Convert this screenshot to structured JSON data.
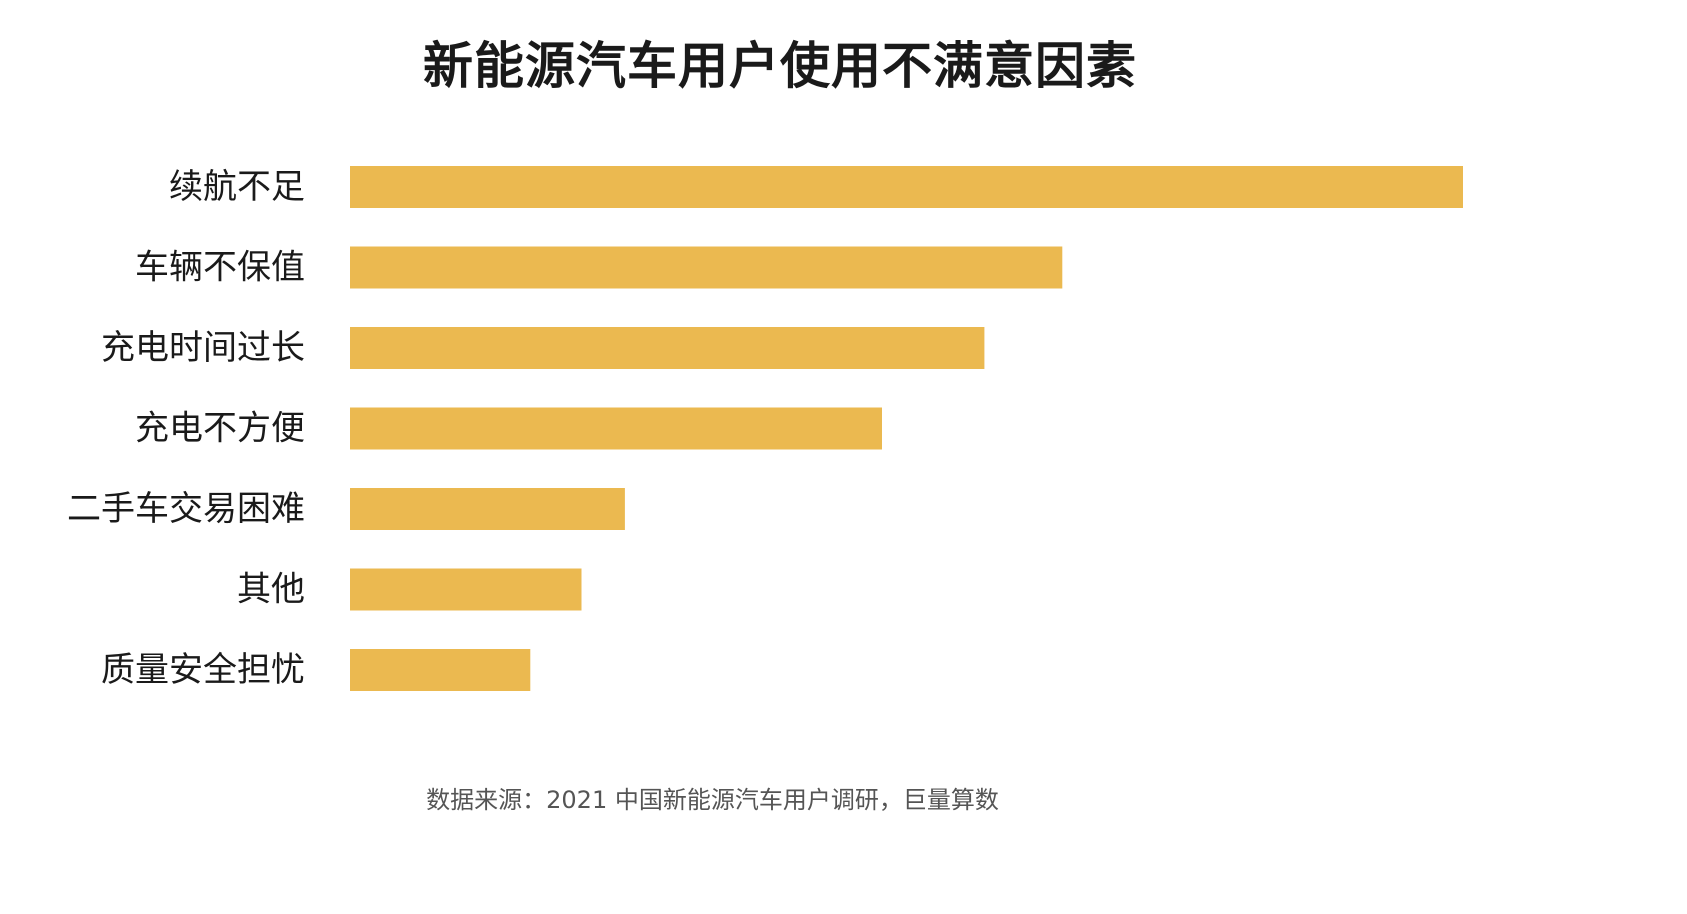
{
  "chart_data": {
    "type": "bar",
    "orientation": "horizontal",
    "title": "新能源汽车用户使用不满意因素",
    "categories": [
      "续航不足",
      "车辆不保值",
      "充电时间过长",
      "充电不方便",
      "二手车交易困难",
      "其他",
      "质量安全担忧"
    ],
    "values": [
      100,
      64,
      57,
      47.8,
      24.7,
      20.8,
      16.2
    ],
    "xlim": [
      0,
      100
    ],
    "xlabel": "",
    "ylabel": "",
    "grid": false,
    "show_value_axis": false,
    "bar_color": "#EBB950",
    "label_color": "#1a1a1a",
    "source": "数据来源：2021 中国新能源汽车用户调研，巨量算数"
  }
}
